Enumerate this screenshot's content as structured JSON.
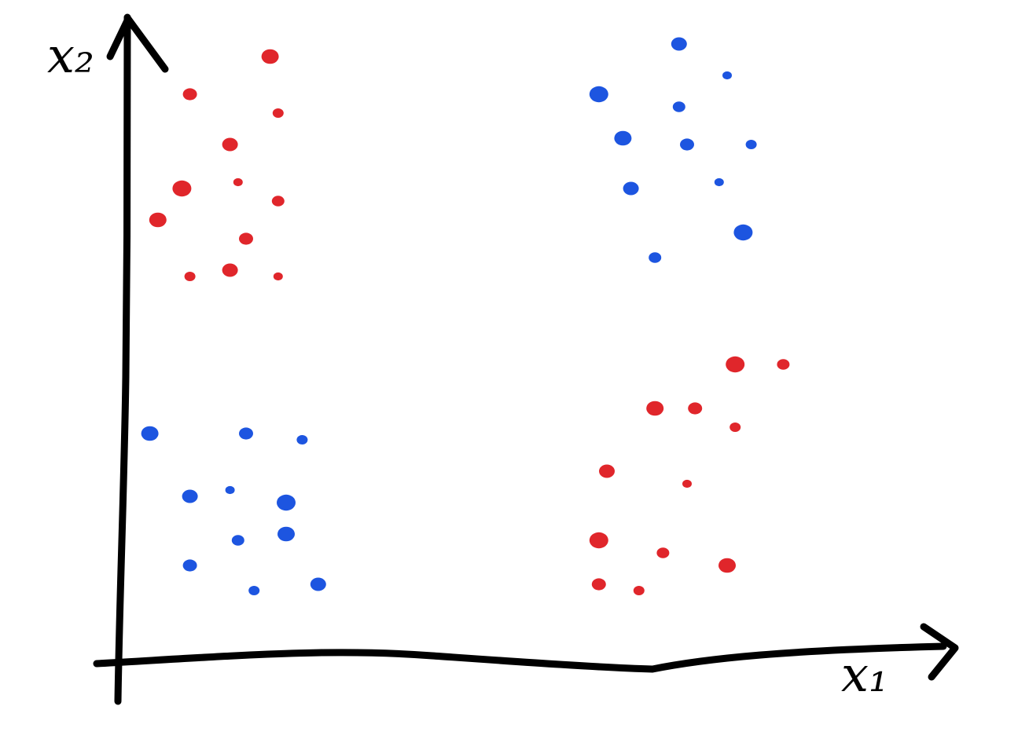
{
  "chart_data": {
    "type": "scatter",
    "title": "",
    "xlabel": "x₁",
    "ylabel": "x₂",
    "xlim": [
      0,
      10
    ],
    "ylim": [
      0,
      10
    ],
    "grid": false,
    "legend": "none",
    "series": [
      {
        "color": "#e0262b",
        "points": [
          [
            1.8,
            9.6
          ],
          [
            0.8,
            9.0
          ],
          [
            1.9,
            8.7
          ],
          [
            1.3,
            8.2
          ],
          [
            1.4,
            7.6
          ],
          [
            0.7,
            7.5
          ],
          [
            1.9,
            7.3
          ],
          [
            0.4,
            7.0
          ],
          [
            1.5,
            6.7
          ],
          [
            0.8,
            6.1
          ],
          [
            1.3,
            6.2
          ],
          [
            1.9,
            6.1
          ],
          [
            7.6,
            4.7
          ],
          [
            8.2,
            4.7
          ],
          [
            6.6,
            4.0
          ],
          [
            7.1,
            4.0
          ],
          [
            7.6,
            3.7
          ],
          [
            6.0,
            3.0
          ],
          [
            7.0,
            2.8
          ],
          [
            5.9,
            1.9
          ],
          [
            6.7,
            1.7
          ],
          [
            7.5,
            1.5
          ],
          [
            5.9,
            1.2
          ],
          [
            6.4,
            1.1
          ]
        ]
      },
      {
        "color": "#1d55e0",
        "points": [
          [
            6.9,
            9.8
          ],
          [
            7.5,
            9.3
          ],
          [
            5.9,
            9.0
          ],
          [
            6.9,
            8.8
          ],
          [
            6.2,
            8.3
          ],
          [
            7.0,
            8.2
          ],
          [
            7.8,
            8.2
          ],
          [
            6.3,
            7.5
          ],
          [
            7.4,
            7.6
          ],
          [
            7.7,
            6.8
          ],
          [
            6.6,
            6.4
          ],
          [
            0.3,
            3.6
          ],
          [
            1.5,
            3.6
          ],
          [
            2.2,
            3.5
          ],
          [
            0.8,
            2.6
          ],
          [
            1.3,
            2.7
          ],
          [
            2.0,
            2.5
          ],
          [
            1.4,
            1.9
          ],
          [
            2.0,
            2.0
          ],
          [
            0.8,
            1.5
          ],
          [
            1.6,
            1.1
          ],
          [
            2.4,
            1.2
          ]
        ]
      }
    ]
  }
}
